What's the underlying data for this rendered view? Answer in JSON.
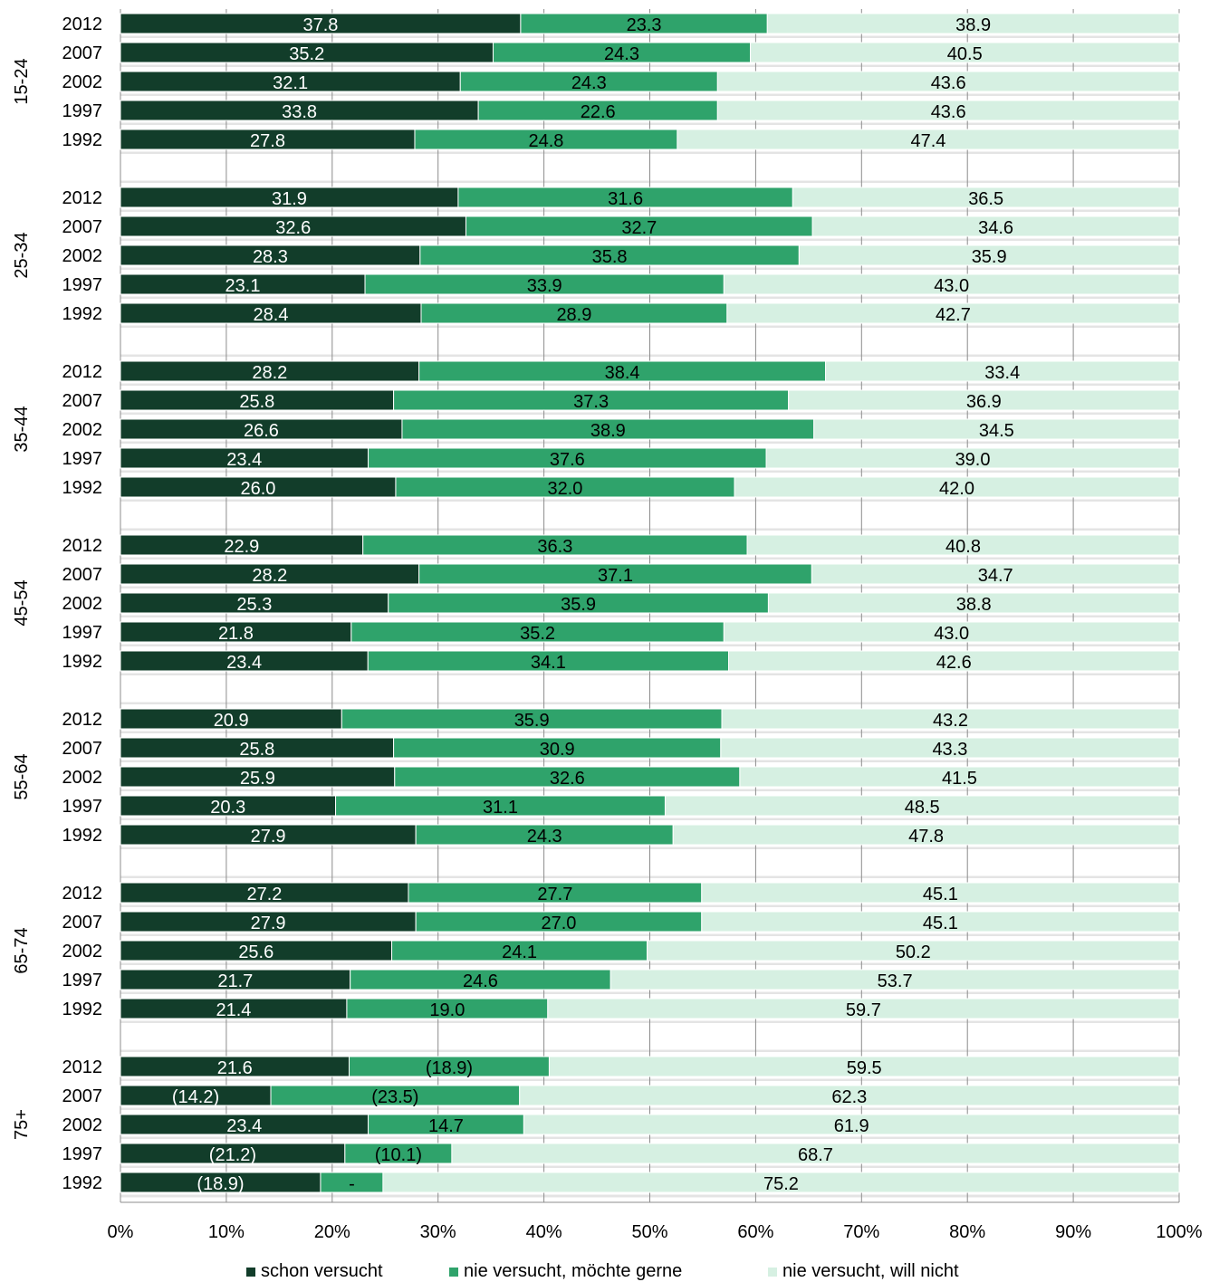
{
  "chart_data": {
    "type": "bar",
    "orientation": "horizontal",
    "stacked": "percent",
    "grid": true,
    "legend_position": "bottom",
    "x_ticks": [
      "0%",
      "10%",
      "20%",
      "30%",
      "40%",
      "50%",
      "60%",
      "70%",
      "80%",
      "90%",
      "100%"
    ],
    "xlim": [
      0,
      100
    ],
    "series": [
      {
        "name": "schon versucht",
        "color": "#123d2a",
        "label_color": "#ffffff"
      },
      {
        "name": "nie versucht, möchte gerne",
        "color": "#2fa36b",
        "label_color": "#000000"
      },
      {
        "name": "nie versucht, will nicht",
        "color": "#d6f0e2",
        "label_color": "#000000"
      }
    ],
    "groups": [
      {
        "name": "15-24",
        "rows": [
          {
            "year": "2012",
            "values": [
              37.8,
              23.3,
              38.9
            ],
            "labels": [
              "37.8",
              "23.3",
              "38.9"
            ]
          },
          {
            "year": "2007",
            "values": [
              35.2,
              24.3,
              40.5
            ],
            "labels": [
              "35.2",
              "24.3",
              "40.5"
            ]
          },
          {
            "year": "2002",
            "values": [
              32.1,
              24.3,
              43.6
            ],
            "labels": [
              "32.1",
              "24.3",
              "43.6"
            ]
          },
          {
            "year": "1997",
            "values": [
              33.8,
              22.6,
              43.6
            ],
            "labels": [
              "33.8",
              "22.6",
              "43.6"
            ]
          },
          {
            "year": "1992",
            "values": [
              27.8,
              24.8,
              47.4
            ],
            "labels": [
              "27.8",
              "24.8",
              "47.4"
            ]
          }
        ]
      },
      {
        "name": "25-34",
        "rows": [
          {
            "year": "2012",
            "values": [
              31.9,
              31.6,
              36.5
            ],
            "labels": [
              "31.9",
              "31.6",
              "36.5"
            ]
          },
          {
            "year": "2007",
            "values": [
              32.6,
              32.7,
              34.6
            ],
            "labels": [
              "32.6",
              "32.7",
              "34.6"
            ]
          },
          {
            "year": "2002",
            "values": [
              28.3,
              35.8,
              35.9
            ],
            "labels": [
              "28.3",
              "35.8",
              "35.9"
            ]
          },
          {
            "year": "1997",
            "values": [
              23.1,
              33.9,
              43.0
            ],
            "labels": [
              "23.1",
              "33.9",
              "43.0"
            ]
          },
          {
            "year": "1992",
            "values": [
              28.4,
              28.9,
              42.7
            ],
            "labels": [
              "28.4",
              "28.9",
              "42.7"
            ]
          }
        ]
      },
      {
        "name": "35-44",
        "rows": [
          {
            "year": "2012",
            "values": [
              28.2,
              38.4,
              33.4
            ],
            "labels": [
              "28.2",
              "38.4",
              "33.4"
            ]
          },
          {
            "year": "2007",
            "values": [
              25.8,
              37.3,
              36.9
            ],
            "labels": [
              "25.8",
              "37.3",
              "36.9"
            ]
          },
          {
            "year": "2002",
            "values": [
              26.6,
              38.9,
              34.5
            ],
            "labels": [
              "26.6",
              "38.9",
              "34.5"
            ]
          },
          {
            "year": "1997",
            "values": [
              23.4,
              37.6,
              39.0
            ],
            "labels": [
              "23.4",
              "37.6",
              "39.0"
            ]
          },
          {
            "year": "1992",
            "values": [
              26.0,
              32.0,
              42.0
            ],
            "labels": [
              "26.0",
              "32.0",
              "42.0"
            ]
          }
        ]
      },
      {
        "name": "45-54",
        "rows": [
          {
            "year": "2012",
            "values": [
              22.9,
              36.3,
              40.8
            ],
            "labels": [
              "22.9",
              "36.3",
              "40.8"
            ]
          },
          {
            "year": "2007",
            "values": [
              28.2,
              37.1,
              34.7
            ],
            "labels": [
              "28.2",
              "37.1",
              "34.7"
            ]
          },
          {
            "year": "2002",
            "values": [
              25.3,
              35.9,
              38.8
            ],
            "labels": [
              "25.3",
              "35.9",
              "38.8"
            ]
          },
          {
            "year": "1997",
            "values": [
              21.8,
              35.2,
              43.0
            ],
            "labels": [
              "21.8",
              "35.2",
              "43.0"
            ]
          },
          {
            "year": "1992",
            "values": [
              23.4,
              34.1,
              42.6
            ],
            "labels": [
              "23.4",
              "34.1",
              "42.6"
            ]
          }
        ]
      },
      {
        "name": "55-64",
        "rows": [
          {
            "year": "2012",
            "values": [
              20.9,
              35.9,
              43.2
            ],
            "labels": [
              "20.9",
              "35.9",
              "43.2"
            ]
          },
          {
            "year": "2007",
            "values": [
              25.8,
              30.9,
              43.3
            ],
            "labels": [
              "25.8",
              "30.9",
              "43.3"
            ]
          },
          {
            "year": "2002",
            "values": [
              25.9,
              32.6,
              41.5
            ],
            "labels": [
              "25.9",
              "32.6",
              "41.5"
            ]
          },
          {
            "year": "1997",
            "values": [
              20.3,
              31.1,
              48.5
            ],
            "labels": [
              "20.3",
              "31.1",
              "48.5"
            ]
          },
          {
            "year": "1992",
            "values": [
              27.9,
              24.3,
              47.8
            ],
            "labels": [
              "27.9",
              "24.3",
              "47.8"
            ]
          }
        ]
      },
      {
        "name": "65-74",
        "rows": [
          {
            "year": "2012",
            "values": [
              27.2,
              27.7,
              45.1
            ],
            "labels": [
              "27.2",
              "27.7",
              "45.1"
            ]
          },
          {
            "year": "2007",
            "values": [
              27.9,
              27.0,
              45.1
            ],
            "labels": [
              "27.9",
              "27.0",
              "45.1"
            ]
          },
          {
            "year": "2002",
            "values": [
              25.6,
              24.1,
              50.2
            ],
            "labels": [
              "25.6",
              "24.1",
              "50.2"
            ]
          },
          {
            "year": "1997",
            "values": [
              21.7,
              24.6,
              53.7
            ],
            "labels": [
              "21.7",
              "24.6",
              "53.7"
            ]
          },
          {
            "year": "1992",
            "values": [
              21.4,
              19.0,
              59.7
            ],
            "labels": [
              "21.4",
              "19.0",
              "59.7"
            ]
          }
        ]
      },
      {
        "name": "75+",
        "rows": [
          {
            "year": "2012",
            "values": [
              21.6,
              18.9,
              59.5
            ],
            "labels": [
              "21.6",
              "(18.9)",
              "59.5"
            ]
          },
          {
            "year": "2007",
            "values": [
              14.2,
              23.5,
              62.3
            ],
            "labels": [
              "(14.2)",
              "(23.5)",
              "62.3"
            ]
          },
          {
            "year": "2002",
            "values": [
              23.4,
              14.7,
              61.9
            ],
            "labels": [
              "23.4",
              "14.7",
              "61.9"
            ]
          },
          {
            "year": "1997",
            "values": [
              21.2,
              10.1,
              68.7
            ],
            "labels": [
              "(21.2)",
              "(10.1)",
              "68.7"
            ]
          },
          {
            "year": "1992",
            "values": [
              18.9,
              5.9,
              75.2
            ],
            "labels": [
              "(18.9)",
              "-",
              "75.2"
            ]
          }
        ]
      }
    ]
  }
}
